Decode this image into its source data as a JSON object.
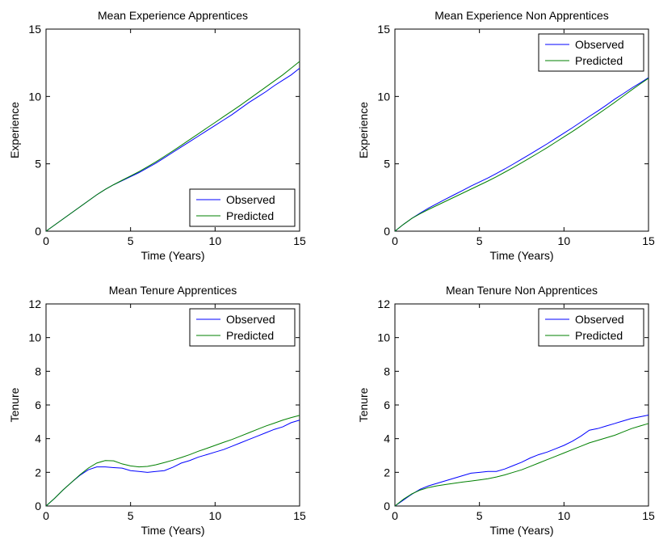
{
  "chart_data": [
    {
      "type": "line",
      "title": "Mean Experience Apprentices",
      "xlabel": "Time (Years)",
      "ylabel": "Experience",
      "xlim": [
        0,
        15
      ],
      "ylim": [
        0,
        15
      ],
      "xticks": [
        "0",
        "5",
        "10",
        "15"
      ],
      "yticks": [
        "0",
        "5",
        "10",
        "15"
      ],
      "legend_position": "bottom-right",
      "series": [
        {
          "name": "Observed",
          "color": "#0000ff",
          "x": [
            0,
            0.5,
            1,
            1.5,
            2,
            2.5,
            3,
            3.5,
            4,
            4.5,
            5,
            5.5,
            6,
            6.5,
            7,
            7.5,
            8,
            8.5,
            9,
            9.5,
            10,
            10.5,
            11,
            11.5,
            12,
            12.5,
            13,
            13.5,
            14,
            14.5,
            15
          ],
          "y": [
            0,
            0.45,
            0.9,
            1.35,
            1.8,
            2.25,
            2.7,
            3.1,
            3.45,
            3.75,
            4.05,
            4.35,
            4.7,
            5.05,
            5.45,
            5.85,
            6.25,
            6.65,
            7.05,
            7.45,
            7.85,
            8.25,
            8.65,
            9.1,
            9.55,
            9.95,
            10.35,
            10.8,
            11.2,
            11.6,
            12.1
          ]
        },
        {
          "name": "Predicted",
          "color": "#008000",
          "x": [
            0,
            0.5,
            1,
            1.5,
            2,
            2.5,
            3,
            3.5,
            4,
            4.5,
            5,
            5.5,
            6,
            6.5,
            7,
            7.5,
            8,
            8.5,
            9,
            9.5,
            10,
            10.5,
            11,
            11.5,
            12,
            12.5,
            13,
            13.5,
            14,
            14.5,
            15
          ],
          "y": [
            0,
            0.45,
            0.9,
            1.35,
            1.8,
            2.25,
            2.7,
            3.1,
            3.45,
            3.78,
            4.1,
            4.42,
            4.78,
            5.15,
            5.55,
            5.95,
            6.37,
            6.8,
            7.22,
            7.65,
            8.07,
            8.5,
            8.92,
            9.35,
            9.8,
            10.25,
            10.7,
            11.15,
            11.6,
            12.1,
            12.6
          ]
        }
      ]
    },
    {
      "type": "line",
      "title": "Mean Experience Non Apprentices",
      "xlabel": "Time (Years)",
      "ylabel": "Experience",
      "xlim": [
        0,
        15
      ],
      "ylim": [
        0,
        15
      ],
      "xticks": [
        "0",
        "5",
        "10",
        "15"
      ],
      "yticks": [
        "0",
        "5",
        "10",
        "15"
      ],
      "legend_position": "top-right",
      "series": [
        {
          "name": "Observed",
          "color": "#0000ff",
          "x": [
            0,
            0.5,
            1,
            1.5,
            2,
            2.5,
            3,
            3.5,
            4,
            4.5,
            5,
            5.5,
            6,
            6.5,
            7,
            7.5,
            8,
            8.5,
            9,
            9.5,
            10,
            10.5,
            11,
            11.5,
            12,
            12.5,
            13,
            13.5,
            14,
            14.5,
            15
          ],
          "y": [
            0,
            0.5,
            0.95,
            1.35,
            1.72,
            2.05,
            2.38,
            2.7,
            3.02,
            3.35,
            3.65,
            3.95,
            4.28,
            4.62,
            4.98,
            5.35,
            5.72,
            6.1,
            6.48,
            6.88,
            7.28,
            7.68,
            8.1,
            8.52,
            8.92,
            9.35,
            9.8,
            10.2,
            10.62,
            11.0,
            11.4
          ]
        },
        {
          "name": "Predicted",
          "color": "#008000",
          "x": [
            0,
            0.5,
            1,
            1.5,
            2,
            2.5,
            3,
            3.5,
            4,
            4.5,
            5,
            5.5,
            6,
            6.5,
            7,
            7.5,
            8,
            8.5,
            9,
            9.5,
            10,
            10.5,
            11,
            11.5,
            12,
            12.5,
            13,
            13.5,
            14,
            14.5,
            15
          ],
          "y": [
            0,
            0.5,
            0.95,
            1.3,
            1.62,
            1.92,
            2.22,
            2.52,
            2.82,
            3.12,
            3.42,
            3.72,
            4.04,
            4.38,
            4.72,
            5.08,
            5.45,
            5.82,
            6.2,
            6.6,
            7.0,
            7.4,
            7.82,
            8.25,
            8.68,
            9.12,
            9.56,
            10.02,
            10.48,
            10.92,
            11.35
          ]
        }
      ]
    },
    {
      "type": "line",
      "title": "Mean Tenure Apprentices",
      "xlabel": "Time (Years)",
      "ylabel": "Tenure",
      "xlim": [
        0,
        15
      ],
      "ylim": [
        0,
        12
      ],
      "xticks": [
        "0",
        "5",
        "10",
        "15"
      ],
      "yticks": [
        "0",
        "2",
        "4",
        "6",
        "8",
        "10",
        "12"
      ],
      "legend_position": "top-right",
      "series": [
        {
          "name": "Observed",
          "color": "#0000ff",
          "x": [
            0,
            0.5,
            1,
            1.5,
            2,
            2.5,
            3,
            3.5,
            4,
            4.5,
            5,
            5.5,
            6,
            6.5,
            7,
            7.5,
            8,
            8.5,
            9,
            9.5,
            10,
            10.5,
            11,
            11.5,
            12,
            12.5,
            13,
            13.5,
            14,
            14.5,
            15
          ],
          "y": [
            0,
            0.45,
            0.95,
            1.4,
            1.82,
            2.15,
            2.32,
            2.32,
            2.28,
            2.25,
            2.1,
            2.05,
            2.0,
            2.05,
            2.1,
            2.3,
            2.55,
            2.7,
            2.9,
            3.05,
            3.2,
            3.35,
            3.55,
            3.75,
            3.95,
            4.15,
            4.35,
            4.55,
            4.7,
            4.95,
            5.1
          ]
        },
        {
          "name": "Predicted",
          "color": "#008000",
          "x": [
            0,
            0.5,
            1,
            1.5,
            2,
            2.5,
            3,
            3.5,
            4,
            4.5,
            5,
            5.5,
            6,
            6.5,
            7,
            7.5,
            8,
            8.5,
            9,
            9.5,
            10,
            10.5,
            11,
            11.5,
            12,
            12.5,
            13,
            13.5,
            14,
            14.5,
            15
          ],
          "y": [
            0,
            0.45,
            0.95,
            1.4,
            1.85,
            2.25,
            2.55,
            2.7,
            2.68,
            2.5,
            2.38,
            2.32,
            2.35,
            2.45,
            2.58,
            2.72,
            2.88,
            3.05,
            3.25,
            3.42,
            3.6,
            3.78,
            3.95,
            4.15,
            4.35,
            4.55,
            4.75,
            4.92,
            5.1,
            5.25,
            5.38
          ]
        }
      ]
    },
    {
      "type": "line",
      "title": "Mean Tenure Non Apprentices",
      "xlabel": "Time (Years)",
      "ylabel": "Tenure",
      "xlim": [
        0,
        15
      ],
      "ylim": [
        0,
        12
      ],
      "xticks": [
        "0",
        "5",
        "10",
        "15"
      ],
      "yticks": [
        "0",
        "2",
        "4",
        "6",
        "8",
        "10",
        "12"
      ],
      "legend_position": "top-right",
      "series": [
        {
          "name": "Observed",
          "color": "#0000ff",
          "x": [
            0,
            0.5,
            1,
            1.5,
            2,
            2.5,
            3,
            3.5,
            4,
            4.5,
            5,
            5.5,
            6,
            6.5,
            7,
            7.5,
            8,
            8.5,
            9,
            9.5,
            10,
            10.5,
            11,
            11.5,
            12,
            12.5,
            13,
            13.5,
            14,
            14.5,
            15
          ],
          "y": [
            0,
            0.35,
            0.7,
            1.0,
            1.2,
            1.35,
            1.5,
            1.65,
            1.8,
            1.95,
            2.0,
            2.05,
            2.05,
            2.2,
            2.4,
            2.6,
            2.85,
            3.05,
            3.2,
            3.4,
            3.6,
            3.85,
            4.15,
            4.5,
            4.6,
            4.75,
            4.9,
            5.05,
            5.2,
            5.3,
            5.4
          ]
        },
        {
          "name": "Predicted",
          "color": "#008000",
          "x": [
            0,
            0.5,
            1,
            1.5,
            2,
            2.5,
            3,
            3.5,
            4,
            4.5,
            5,
            5.5,
            6,
            6.5,
            7,
            7.5,
            8,
            8.5,
            9,
            9.5,
            10,
            10.5,
            11,
            11.5,
            12,
            12.5,
            13,
            13.5,
            14,
            14.5,
            15
          ],
          "y": [
            0,
            0.4,
            0.72,
            0.95,
            1.1,
            1.2,
            1.28,
            1.35,
            1.42,
            1.48,
            1.55,
            1.62,
            1.72,
            1.85,
            2.0,
            2.15,
            2.35,
            2.55,
            2.75,
            2.95,
            3.15,
            3.35,
            3.55,
            3.75,
            3.9,
            4.05,
            4.2,
            4.4,
            4.6,
            4.75,
            4.9
          ]
        }
      ]
    }
  ]
}
